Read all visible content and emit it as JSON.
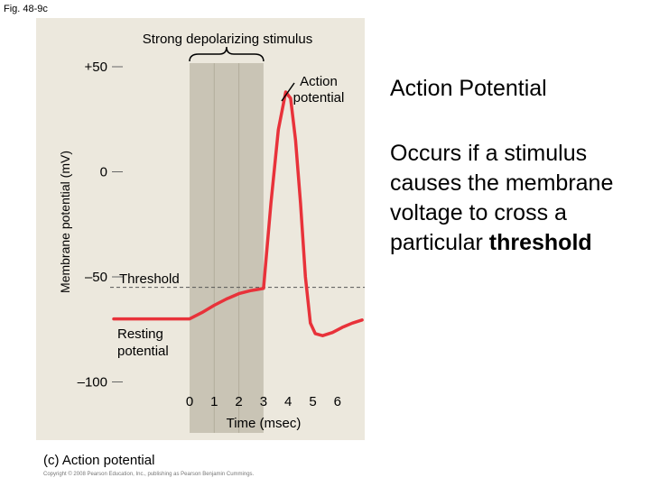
{
  "figure_label": "Fig. 48-9c",
  "caption": "(c) Action potential",
  "copyright": "Copyright © 2008 Pearson Education, Inc., publishing as Pearson Benjamin Cummings.",
  "side_panel": {
    "title": "Action Potential",
    "body_before": "Occurs if a stimulus causes the membrane voltage to cross a particular ",
    "body_keyword": "threshold"
  },
  "chart_data": {
    "type": "line",
    "ylabel": "Membrane potential (mV)",
    "xlabel": "Time (msec)",
    "y_ticks": [
      "+50",
      "0",
      "–50",
      "–100"
    ],
    "y_tick_values": [
      50,
      0,
      -50,
      -100
    ],
    "x_ticks": [
      0,
      1,
      2,
      3,
      4,
      5,
      6
    ],
    "ylim": [
      -100,
      50
    ],
    "xlim": [
      -3,
      7
    ],
    "threshold": -55,
    "resting": -70,
    "stimulus_window": [
      0,
      3
    ],
    "series": [
      {
        "color": "#e8323a",
        "x": [
          -3.1,
          -0.1,
          0.0,
          0.5,
          1.0,
          1.5,
          2.0,
          2.5,
          2.75,
          3.0,
          3.3,
          3.6,
          3.9,
          4.1,
          4.3,
          4.5,
          4.7,
          4.9,
          5.1,
          5.4,
          5.8,
          6.2,
          6.6,
          7.0
        ],
        "y": [
          -70,
          -70,
          -70,
          -67,
          -63.5,
          -60.5,
          -58,
          -56.5,
          -56,
          -55.5,
          -15,
          20,
          38,
          35,
          15,
          -15,
          -50,
          -72,
          -77,
          -78,
          -76.5,
          -74,
          -72,
          -70.5
        ]
      }
    ],
    "annotations": {
      "stimulus": "Strong depolarizing stimulus",
      "action_potential": "Action potential",
      "threshold": "Threshold",
      "resting": "Resting potential"
    },
    "colors": {
      "background": "#ece8dd",
      "stimulus_band": "#c9c4b5",
      "trace": "#e8323a"
    }
  }
}
